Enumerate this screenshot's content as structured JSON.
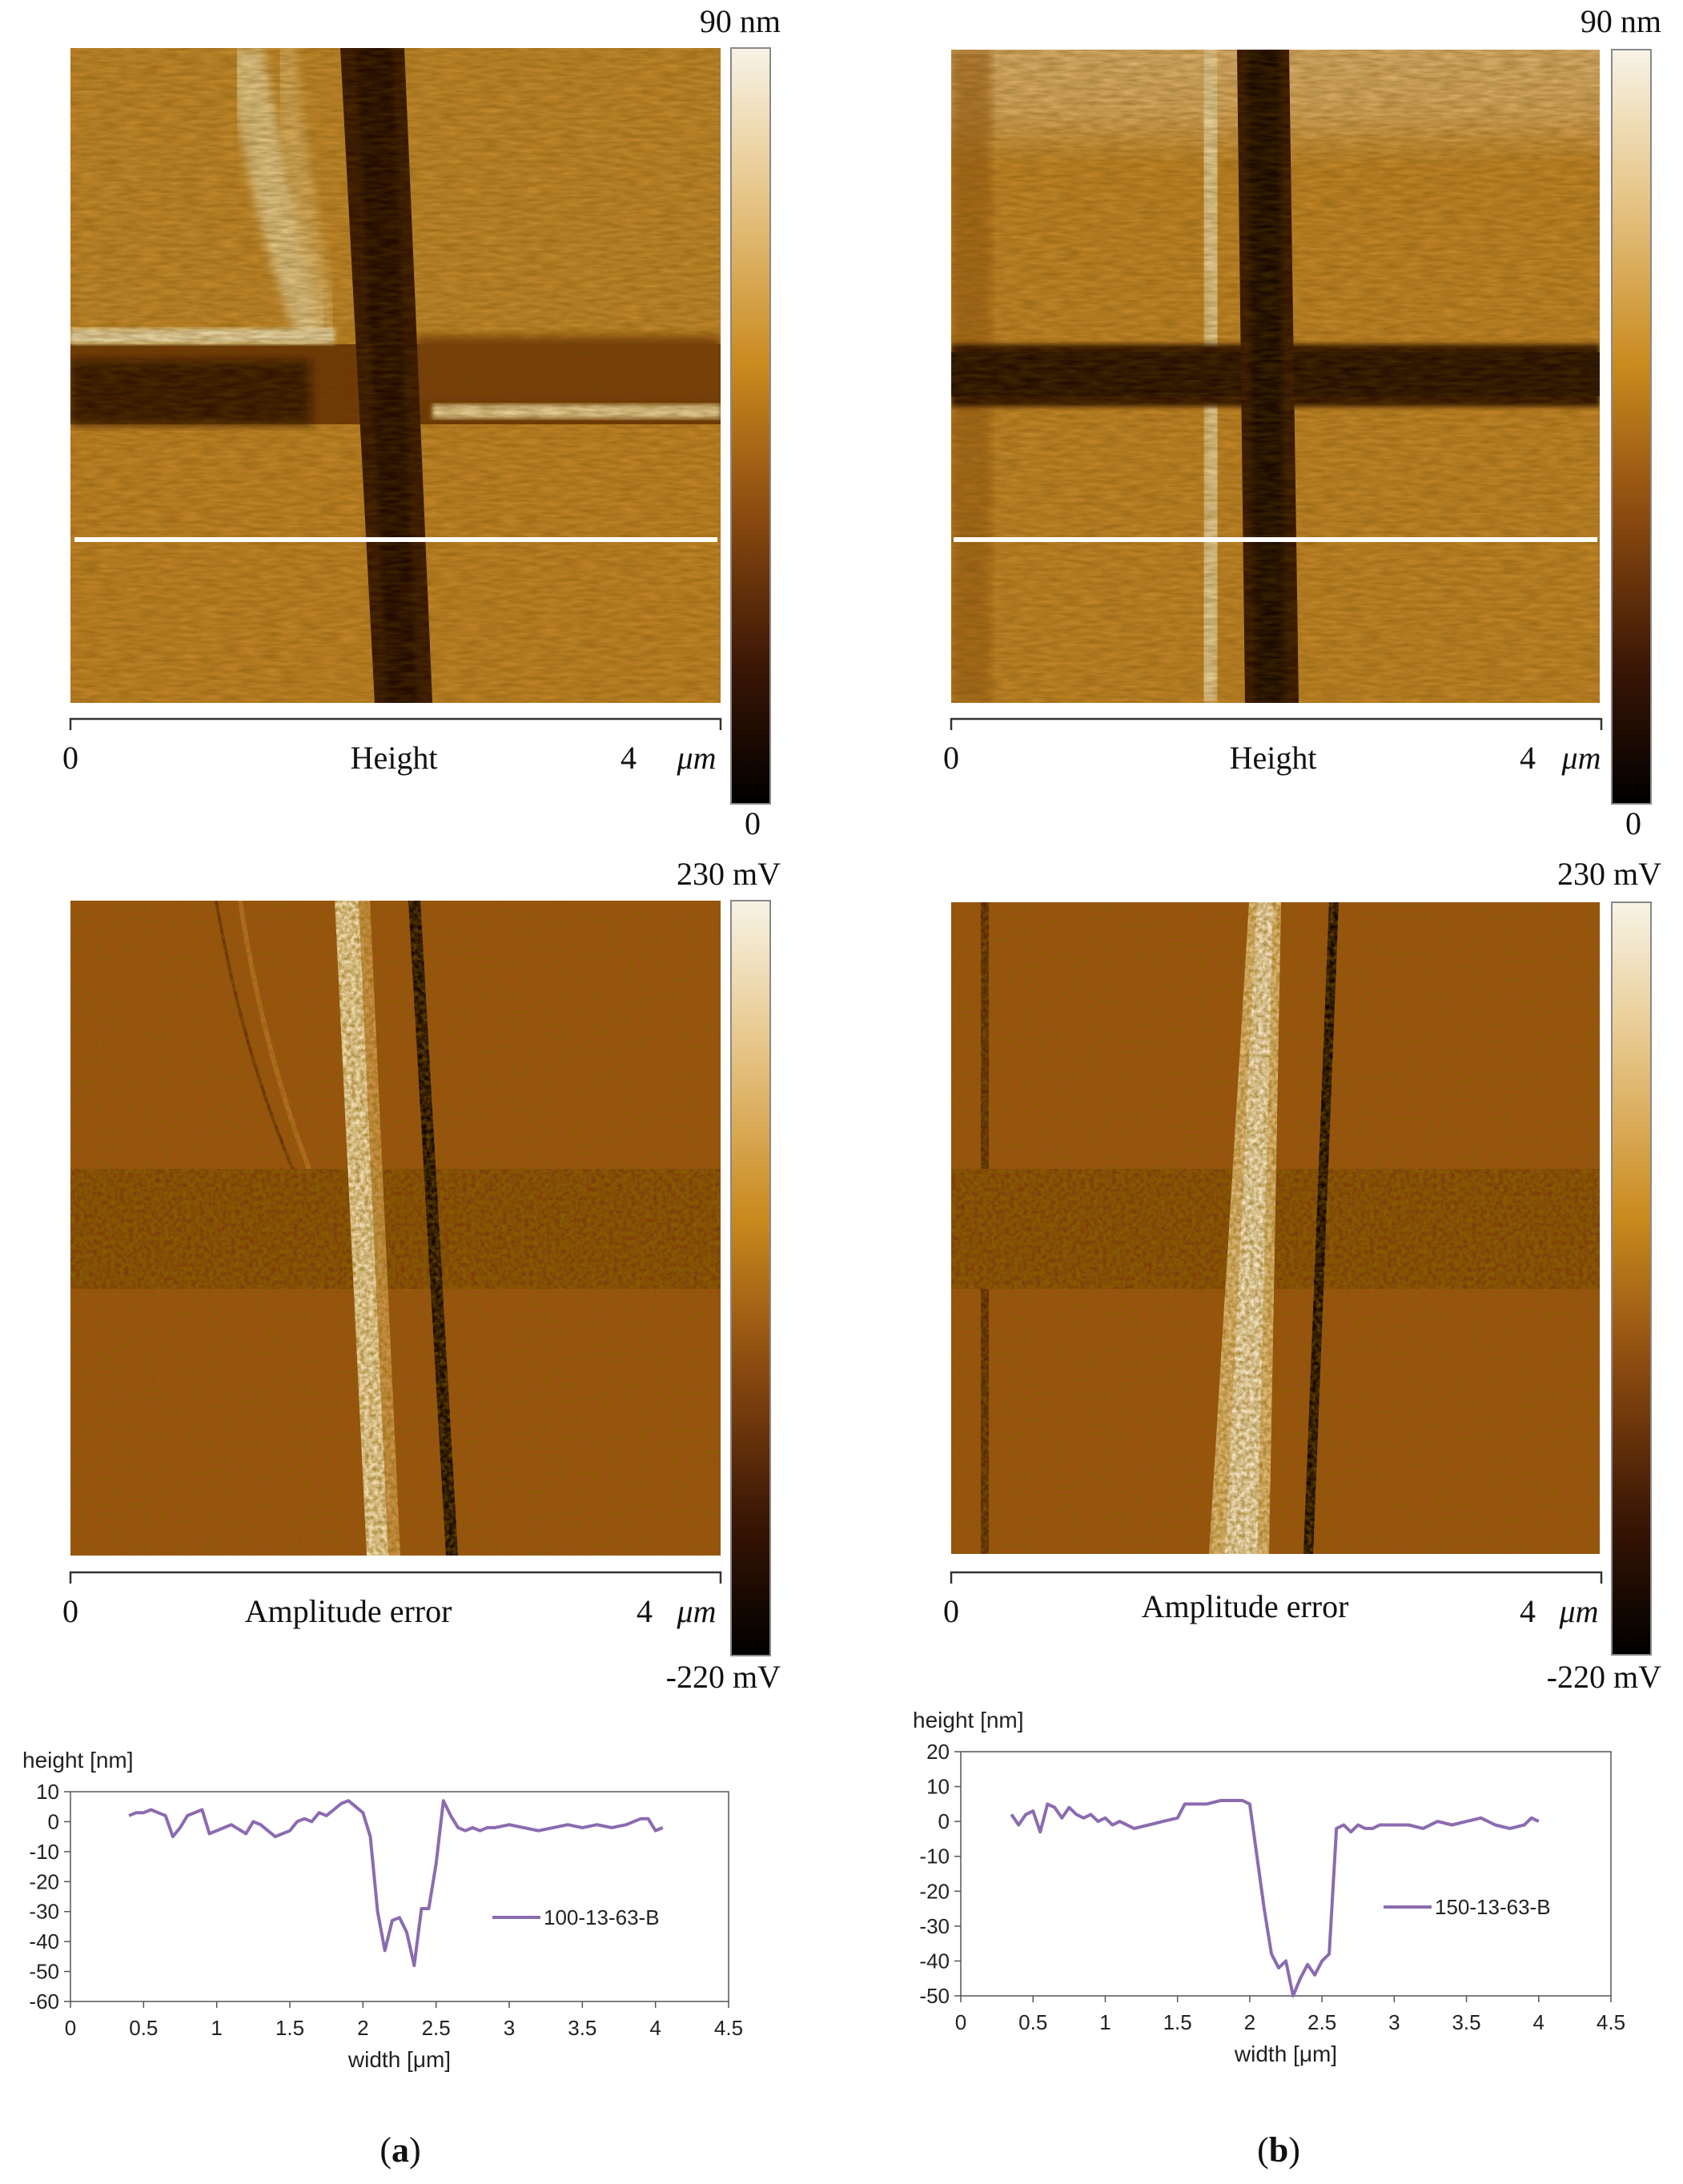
{
  "figure": {
    "panels": [
      {
        "label_open": "(",
        "label_letter": "a",
        "label_close": ")",
        "height_map": {
          "scale_max": "90 nm",
          "scale_min": "0",
          "axis_start": "0",
          "axis_title": "Height",
          "axis_end": "4",
          "axis_unit": "μm"
        },
        "amplitude_map": {
          "scale_max": "230 mV",
          "scale_min": "-220 mV",
          "axis_start": "0",
          "axis_title": "Amplitude error",
          "axis_end": "4",
          "axis_unit": "μm"
        }
      },
      {
        "label_open": "(",
        "label_letter": "b",
        "label_close": ")",
        "height_map": {
          "scale_max": "90 nm",
          "scale_min": "0",
          "axis_start": "0",
          "axis_title": "Height",
          "axis_end": "4",
          "axis_unit": "μm"
        },
        "amplitude_map": {
          "scale_max": "230 mV",
          "scale_min": "-220 mV",
          "axis_start": "0",
          "axis_title": "Amplitude error",
          "axis_end": "4",
          "axis_unit": "μm"
        }
      }
    ]
  },
  "colors": {
    "afm_bright": "#f7f3e6",
    "afm_mid": "#c98a1e",
    "afm_dark": "#000000",
    "profile_line": "#8b6bb0"
  },
  "chart_data": [
    {
      "type": "line",
      "ylabel": "height [nm]",
      "xlabel": "width [μm]",
      "xlim": [
        0,
        4.5
      ],
      "ylim": [
        -60,
        10
      ],
      "x_ticks": [
        "0",
        "0.5",
        "1",
        "1.5",
        "2",
        "2.5",
        "3",
        "3.5",
        "4",
        "4.5"
      ],
      "y_ticks": [
        "10",
        "0",
        "-10",
        "-20",
        "-30",
        "-40",
        "-50",
        "-60"
      ],
      "grid": false,
      "legend_position": "right",
      "series": [
        {
          "name": "100-13-63-B",
          "x": [
            0.4,
            0.45,
            0.5,
            0.55,
            0.6,
            0.65,
            0.7,
            0.75,
            0.8,
            0.9,
            0.95,
            1.0,
            1.05,
            1.1,
            1.2,
            1.25,
            1.3,
            1.4,
            1.45,
            1.5,
            1.55,
            1.6,
            1.65,
            1.7,
            1.75,
            1.8,
            1.85,
            1.9,
            1.95,
            2.0,
            2.05,
            2.1,
            2.15,
            2.2,
            2.25,
            2.3,
            2.35,
            2.4,
            2.45,
            2.5,
            2.55,
            2.6,
            2.65,
            2.7,
            2.75,
            2.8,
            2.85,
            2.9,
            3.0,
            3.1,
            3.2,
            3.3,
            3.4,
            3.5,
            3.6,
            3.7,
            3.8,
            3.9,
            3.95,
            4.0,
            4.05
          ],
          "values": [
            2,
            3,
            3,
            4,
            3,
            2,
            -5,
            -2,
            2,
            4,
            -4,
            -3,
            -2,
            -1,
            -4,
            0,
            -1,
            -5,
            -4,
            -3,
            0,
            1,
            0,
            3,
            2,
            4,
            6,
            7,
            5,
            3,
            -5,
            -30,
            -43,
            -33,
            -32,
            -37,
            -48,
            -29,
            -29,
            -14,
            7,
            2,
            -2,
            -3,
            -2,
            -3,
            -2,
            -2,
            -1,
            -2,
            -3,
            -2,
            -1,
            -2,
            -1,
            -2,
            -1,
            1,
            1,
            -3,
            -2
          ]
        }
      ]
    },
    {
      "type": "line",
      "ylabel": "height [nm]",
      "xlabel": "width [μm]",
      "xlim": [
        0,
        4.5
      ],
      "ylim": [
        -50,
        20
      ],
      "x_ticks": [
        "0",
        "0.5",
        "1",
        "1.5",
        "2",
        "2.5",
        "3",
        "3.5",
        "4",
        "4.5"
      ],
      "y_ticks": [
        "20",
        "10",
        "0",
        "-10",
        "-20",
        "-30",
        "-40",
        "-50"
      ],
      "grid": false,
      "legend_position": "right",
      "series": [
        {
          "name": "150-13-63-B",
          "x": [
            0.35,
            0.4,
            0.45,
            0.5,
            0.55,
            0.6,
            0.65,
            0.7,
            0.75,
            0.8,
            0.85,
            0.9,
            0.95,
            1.0,
            1.05,
            1.1,
            1.2,
            1.3,
            1.4,
            1.5,
            1.55,
            1.6,
            1.7,
            1.8,
            1.9,
            1.95,
            2.0,
            2.05,
            2.1,
            2.15,
            2.2,
            2.25,
            2.3,
            2.35,
            2.4,
            2.45,
            2.5,
            2.55,
            2.6,
            2.65,
            2.7,
            2.75,
            2.8,
            2.85,
            2.9,
            3.0,
            3.1,
            3.2,
            3.3,
            3.4,
            3.5,
            3.6,
            3.7,
            3.8,
            3.9,
            3.95,
            4.0
          ],
          "values": [
            2,
            -1,
            2,
            3,
            -3,
            5,
            4,
            1,
            4,
            2,
            1,
            2,
            0,
            1,
            -1,
            0,
            -2,
            -1,
            0,
            1,
            5,
            5,
            5,
            6,
            6,
            6,
            5,
            -10,
            -25,
            -38,
            -42,
            -40,
            -50,
            -45,
            -41,
            -44,
            -40,
            -38,
            -2,
            -1,
            -3,
            -1,
            -2,
            -2,
            -1,
            -1,
            -1,
            -2,
            0,
            -1,
            0,
            1,
            -1,
            -2,
            -1,
            1,
            0
          ]
        }
      ]
    }
  ]
}
